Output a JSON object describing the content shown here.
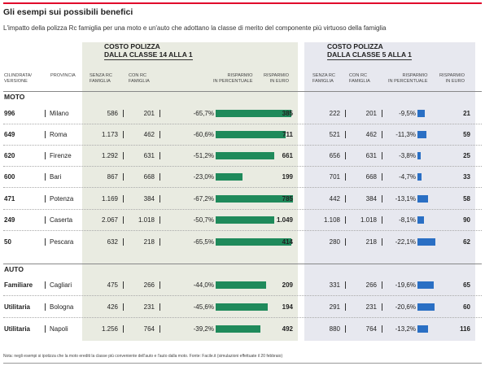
{
  "title": "Gli esempi sui possibili benefici",
  "subtitle": "L'impatto della polizza Rc famiglia per una moto e un'auto che adottano la classe di merito del componente più virtuoso della famiglia",
  "group_a": "COSTO POLIZZA\nDALLA CLASSE 14 ALLA 1",
  "group_b": "COSTO POLIZZA\nDALLA CLASSE 5 ALLA 1",
  "col_headers": {
    "cilindrata": "CILINDRATA/\nVERSIONE",
    "provincia": "PROVINCIA",
    "senza": "SENZA RC\nFAMIGLIA",
    "con": "CON RC\nFAMIGLIA",
    "perc": "RISPARMIO\nIN PERCENTUALE",
    "euro": "RISPARMIO\nIN EURO"
  },
  "sections": {
    "moto": "MOTO",
    "auto": "AUTO"
  },
  "note": "Nota: negli esempi si ipotizza che la moto erediti la classe più conveniente dell'auto e l'auto dalla moto. Fonte: Facile.it (simulazioni effettuate il 20 febbraio)",
  "colors": {
    "green": "#1f8a5b",
    "blue": "#2a6fc4",
    "red": "#e1002a"
  },
  "chart_data": {
    "type": "table",
    "moto": [
      {
        "cilindrata": "996",
        "provincia": "Milano",
        "a_senza": "586",
        "a_con": "201",
        "a_perc": -65.7,
        "a_perc_label": "-65,7%",
        "a_euro": "385",
        "b_senza": "222",
        "b_con": "201",
        "b_perc": -9.5,
        "b_perc_label": "-9,5%",
        "b_euro": "21"
      },
      {
        "cilindrata": "649",
        "provincia": "Roma",
        "a_senza": "1.173",
        "a_con": "462",
        "a_perc": -60.6,
        "a_perc_label": "-60,6%",
        "a_euro": "711",
        "b_senza": "521",
        "b_con": "462",
        "b_perc": -11.3,
        "b_perc_label": "-11,3%",
        "b_euro": "59"
      },
      {
        "cilindrata": "620",
        "provincia": "Firenze",
        "a_senza": "1.292",
        "a_con": "631",
        "a_perc": -51.2,
        "a_perc_label": "-51,2%",
        "a_euro": "661",
        "b_senza": "656",
        "b_con": "631",
        "b_perc": -3.8,
        "b_perc_label": "-3,8%",
        "b_euro": "25"
      },
      {
        "cilindrata": "600",
        "provincia": "Bari",
        "a_senza": "867",
        "a_con": "668",
        "a_perc": -23.0,
        "a_perc_label": "-23,0%",
        "a_euro": "199",
        "b_senza": "701",
        "b_con": "668",
        "b_perc": -4.7,
        "b_perc_label": "-4,7%",
        "b_euro": "33"
      },
      {
        "cilindrata": "471",
        "provincia": "Potenza",
        "a_senza": "1.169",
        "a_con": "384",
        "a_perc": -67.2,
        "a_perc_label": "-67,2%",
        "a_euro": "785",
        "b_senza": "442",
        "b_con": "384",
        "b_perc": -13.1,
        "b_perc_label": "-13,1%",
        "b_euro": "58"
      },
      {
        "cilindrata": "249",
        "provincia": "Caserta",
        "a_senza": "2.067",
        "a_con": "1.018",
        "a_perc": -50.7,
        "a_perc_label": "-50,7%",
        "a_euro": "1.049",
        "b_senza": "1.108",
        "b_con": "1.018",
        "b_perc": -8.1,
        "b_perc_label": "-8,1%",
        "b_euro": "90"
      },
      {
        "cilindrata": "50",
        "provincia": "Pescara",
        "a_senza": "632",
        "a_con": "218",
        "a_perc": -65.5,
        "a_perc_label": "-65,5%",
        "a_euro": "414",
        "b_senza": "280",
        "b_con": "218",
        "b_perc": -22.1,
        "b_perc_label": "-22,1%",
        "b_euro": "62"
      }
    ],
    "auto": [
      {
        "cilindrata": "Familiare",
        "provincia": "Cagliari",
        "a_senza": "475",
        "a_con": "266",
        "a_perc": -44.0,
        "a_perc_label": "-44,0%",
        "a_euro": "209",
        "b_senza": "331",
        "b_con": "266",
        "b_perc": -19.6,
        "b_perc_label": "-19,6%",
        "b_euro": "65"
      },
      {
        "cilindrata": "Utilitaria",
        "provincia": "Bologna",
        "a_senza": "426",
        "a_con": "231",
        "a_perc": -45.6,
        "a_perc_label": "-45,6%",
        "a_euro": "194",
        "b_senza": "291",
        "b_con": "231",
        "b_perc": -20.6,
        "b_perc_label": "-20,6%",
        "b_euro": "60"
      },
      {
        "cilindrata": "Utilitaria",
        "provincia": "Napoli",
        "a_senza": "1.256",
        "a_con": "764",
        "a_perc": -39.2,
        "a_perc_label": "-39,2%",
        "a_euro": "492",
        "b_senza": "880",
        "b_con": "764",
        "b_perc": -13.2,
        "b_perc_label": "-13,2%",
        "b_euro": "116"
      }
    ]
  }
}
